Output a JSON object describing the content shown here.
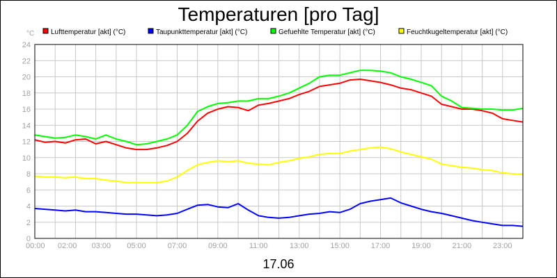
{
  "chart_data": {
    "type": "line",
    "title": "Temperaturen [pro Tag]",
    "date_label": "17.06",
    "y_unit": "°C",
    "ylim": [
      0,
      24
    ],
    "y_ticks": [
      "0",
      "2",
      "4",
      "6",
      "8",
      "10",
      "12",
      "14",
      "16",
      "18",
      "20",
      "22",
      "24"
    ],
    "x_range": [
      0,
      24
    ],
    "x_ticks": [
      {
        "h": 0,
        "label": "00:00"
      },
      {
        "h": 2,
        "label": "02:00"
      },
      {
        "h": 3,
        "label": "03:00"
      },
      {
        "h": 5,
        "label": "05:00"
      },
      {
        "h": 7,
        "label": "07:00"
      },
      {
        "h": 9,
        "label": "09:00"
      },
      {
        "h": 11,
        "label": "11:00"
      },
      {
        "h": 13,
        "label": "13:00"
      },
      {
        "h": 15,
        "label": "15:00"
      },
      {
        "h": 17,
        "label": "17:00"
      },
      {
        "h": 19,
        "label": "19:00"
      },
      {
        "h": 21,
        "label": "21:00"
      },
      {
        "h": 23,
        "label": "23:00"
      }
    ],
    "grid": true,
    "legend_position": "top",
    "series": [
      {
        "name": "Lufttemperatur [akt] (°C)",
        "color": "#ff0000",
        "x": [
          0,
          0.5,
          1,
          1.5,
          2,
          2.5,
          3,
          3.5,
          4,
          4.5,
          5,
          5.5,
          6,
          6.5,
          7,
          7.5,
          8,
          8.5,
          9,
          9.5,
          10,
          10.5,
          11,
          11.5,
          12,
          12.5,
          13,
          13.5,
          14,
          14.5,
          15,
          15.5,
          16,
          16.5,
          17,
          17.5,
          18,
          18.5,
          19,
          19.5,
          20,
          20.5,
          21,
          21.5,
          22,
          22.5,
          23,
          23.5,
          24
        ],
        "values": [
          12.2,
          11.9,
          12.0,
          11.8,
          12.2,
          12.3,
          11.7,
          12.0,
          11.6,
          11.2,
          11.0,
          11.0,
          11.2,
          11.5,
          12.0,
          13.0,
          14.5,
          15.5,
          16.0,
          16.3,
          16.2,
          15.8,
          16.5,
          16.7,
          17.0,
          17.3,
          17.8,
          18.2,
          18.8,
          19.0,
          19.2,
          19.6,
          19.7,
          19.5,
          19.3,
          19.0,
          18.6,
          18.4,
          18.0,
          17.6,
          16.6,
          16.3,
          16.0,
          16.0,
          15.8,
          15.5,
          14.8,
          14.6,
          14.4
        ]
      },
      {
        "name": "Taupunkttemperatur [akt] (°C)",
        "color": "#0000ff",
        "x": [
          0,
          0.5,
          1,
          1.5,
          2,
          2.5,
          3,
          3.5,
          4,
          4.5,
          5,
          5.5,
          6,
          6.5,
          7,
          7.5,
          8,
          8.5,
          9,
          9.5,
          10,
          10.5,
          11,
          11.5,
          12,
          12.5,
          13,
          13.5,
          14,
          14.5,
          15,
          15.5,
          16,
          16.5,
          17,
          17.5,
          18,
          18.5,
          19,
          19.5,
          20,
          20.5,
          21,
          21.5,
          22,
          22.5,
          23,
          23.5,
          24
        ],
        "values": [
          3.7,
          3.6,
          3.5,
          3.4,
          3.5,
          3.3,
          3.3,
          3.2,
          3.1,
          3.0,
          3.0,
          2.9,
          2.8,
          2.9,
          3.1,
          3.6,
          4.1,
          4.2,
          3.9,
          3.8,
          4.3,
          3.5,
          2.8,
          2.6,
          2.5,
          2.6,
          2.8,
          3.0,
          3.1,
          3.3,
          3.2,
          3.6,
          4.3,
          4.6,
          4.8,
          5.0,
          4.4,
          4.0,
          3.6,
          3.3,
          3.1,
          2.8,
          2.5,
          2.2,
          2.0,
          1.8,
          1.6,
          1.6,
          1.5
        ]
      },
      {
        "name": "Gefuehlte Temperatur [akt] (°C)",
        "color": "#00ff00",
        "x": [
          0,
          0.5,
          1,
          1.5,
          2,
          2.5,
          3,
          3.5,
          4,
          4.5,
          5,
          5.5,
          6,
          6.5,
          7,
          7.5,
          8,
          8.5,
          9,
          9.5,
          10,
          10.5,
          11,
          11.5,
          12,
          12.5,
          13,
          13.5,
          14,
          14.5,
          15,
          15.5,
          16,
          16.5,
          17,
          17.5,
          18,
          18.5,
          19,
          19.5,
          20,
          20.5,
          21,
          21.5,
          22,
          22.5,
          23,
          23.5,
          24
        ],
        "values": [
          12.8,
          12.6,
          12.4,
          12.5,
          12.8,
          12.6,
          12.3,
          12.8,
          12.3,
          12.0,
          11.6,
          11.7,
          12.0,
          12.3,
          12.8,
          14.0,
          15.7,
          16.3,
          16.7,
          16.8,
          17.0,
          17.0,
          17.3,
          17.3,
          17.6,
          18.0,
          18.6,
          19.2,
          20.0,
          20.2,
          20.2,
          20.5,
          20.8,
          20.8,
          20.7,
          20.5,
          20.0,
          19.7,
          19.3,
          18.9,
          17.6,
          17.0,
          16.2,
          16.1,
          16.0,
          16.0,
          15.9,
          15.9,
          16.1
        ]
      },
      {
        "name": "Feuchtkugeltemperatur [akt] (°C)",
        "color": "#ffff00",
        "x": [
          0,
          0.5,
          1,
          1.5,
          2,
          2.5,
          3,
          3.5,
          4,
          4.5,
          5,
          5.5,
          6,
          6.5,
          7,
          7.5,
          8,
          8.5,
          9,
          9.5,
          10,
          10.5,
          11,
          11.5,
          12,
          12.5,
          13,
          13.5,
          14,
          14.5,
          15,
          15.5,
          16,
          16.5,
          17,
          17.5,
          18,
          18.5,
          19,
          19.5,
          20,
          20.5,
          21,
          21.5,
          22,
          22.5,
          23,
          23.5,
          24
        ],
        "values": [
          7.7,
          7.6,
          7.6,
          7.5,
          7.6,
          7.4,
          7.4,
          7.2,
          7.1,
          6.9,
          6.9,
          6.9,
          6.9,
          7.1,
          7.6,
          8.4,
          9.1,
          9.4,
          9.6,
          9.5,
          9.6,
          9.3,
          9.2,
          9.1,
          9.4,
          9.6,
          9.9,
          10.1,
          10.4,
          10.5,
          10.5,
          10.8,
          11.0,
          11.2,
          11.3,
          11.1,
          10.7,
          10.4,
          10.1,
          9.8,
          9.2,
          9.0,
          8.8,
          8.7,
          8.5,
          8.4,
          8.1,
          8.0,
          7.9
        ]
      }
    ]
  }
}
